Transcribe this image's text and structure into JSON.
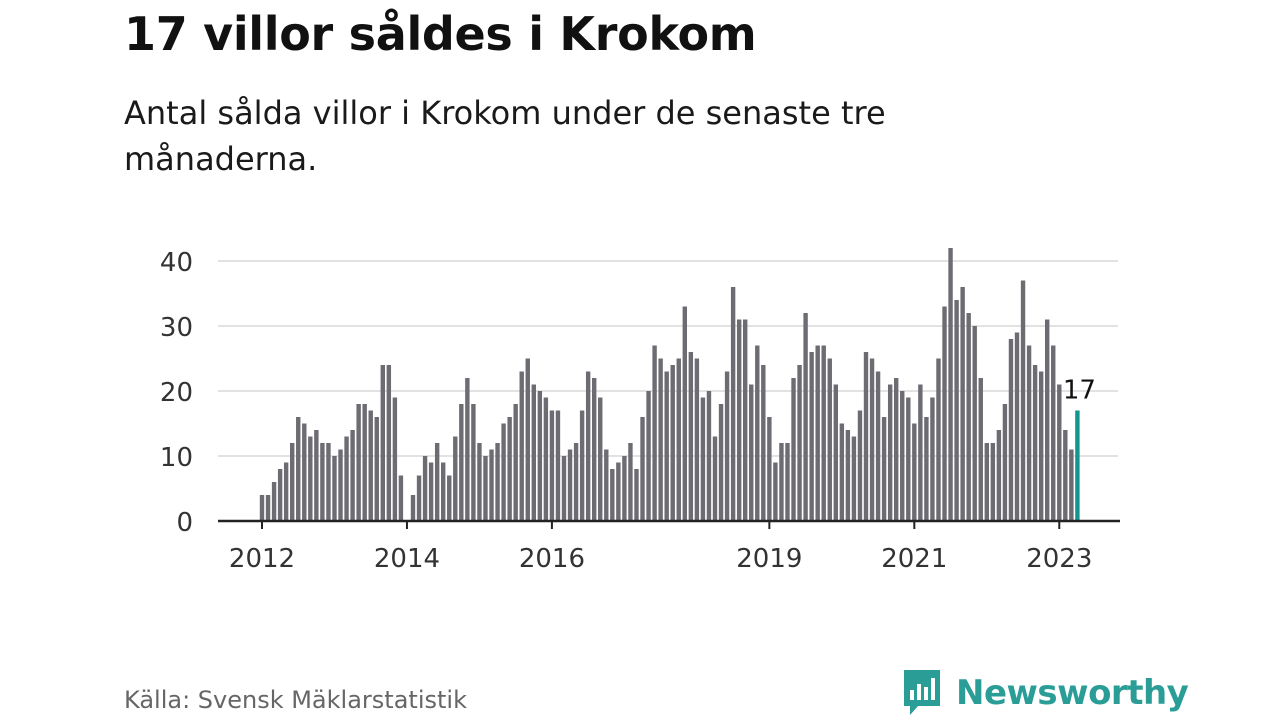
{
  "header": {
    "title": "17 villor såldes i Krokom",
    "subtitle": "Antal sålda villor i Krokom under de senaste tre månaderna."
  },
  "footer": {
    "source": "Källa: Svensk Mäklarstatistik",
    "brand": "Newsworthy"
  },
  "colors": {
    "bar": "#6d6c72",
    "highlight": "#14968f",
    "grid": "#d9d9d9",
    "axis": "#222222",
    "brand": "#2a9d97"
  },
  "chart_data": {
    "type": "bar",
    "start": "2012-01",
    "ylim": [
      0,
      40
    ],
    "yticks": [
      0,
      10,
      20,
      30,
      40
    ],
    "xticks": [
      "2012",
      "2014",
      "2016",
      "2019",
      "2021",
      "2023"
    ],
    "grid": true,
    "values": [
      4,
      4,
      6,
      8,
      9,
      12,
      16,
      15,
      13,
      14,
      12,
      12,
      10,
      11,
      13,
      14,
      18,
      18,
      17,
      16,
      24,
      24,
      19,
      7,
      null,
      4,
      7,
      10,
      9,
      12,
      9,
      7,
      13,
      18,
      22,
      18,
      12,
      10,
      11,
      12,
      15,
      16,
      18,
      23,
      25,
      21,
      20,
      19,
      17,
      17,
      10,
      11,
      12,
      17,
      23,
      22,
      19,
      11,
      8,
      9,
      10,
      12,
      8,
      16,
      20,
      27,
      25,
      23,
      24,
      25,
      33,
      26,
      25,
      19,
      20,
      13,
      18,
      23,
      36,
      31,
      31,
      21,
      27,
      24,
      16,
      9,
      12,
      12,
      22,
      24,
      32,
      26,
      27,
      27,
      25,
      21,
      15,
      14,
      13,
      17,
      26,
      25,
      23,
      16,
      21,
      22,
      20,
      19,
      15,
      21,
      16,
      19,
      25,
      33,
      42,
      34,
      36,
      32,
      30,
      22,
      12,
      12,
      14,
      18,
      28,
      29,
      37,
      27,
      24,
      23,
      31,
      27,
      21,
      14,
      11,
      17
    ],
    "highlight_label": "17"
  }
}
